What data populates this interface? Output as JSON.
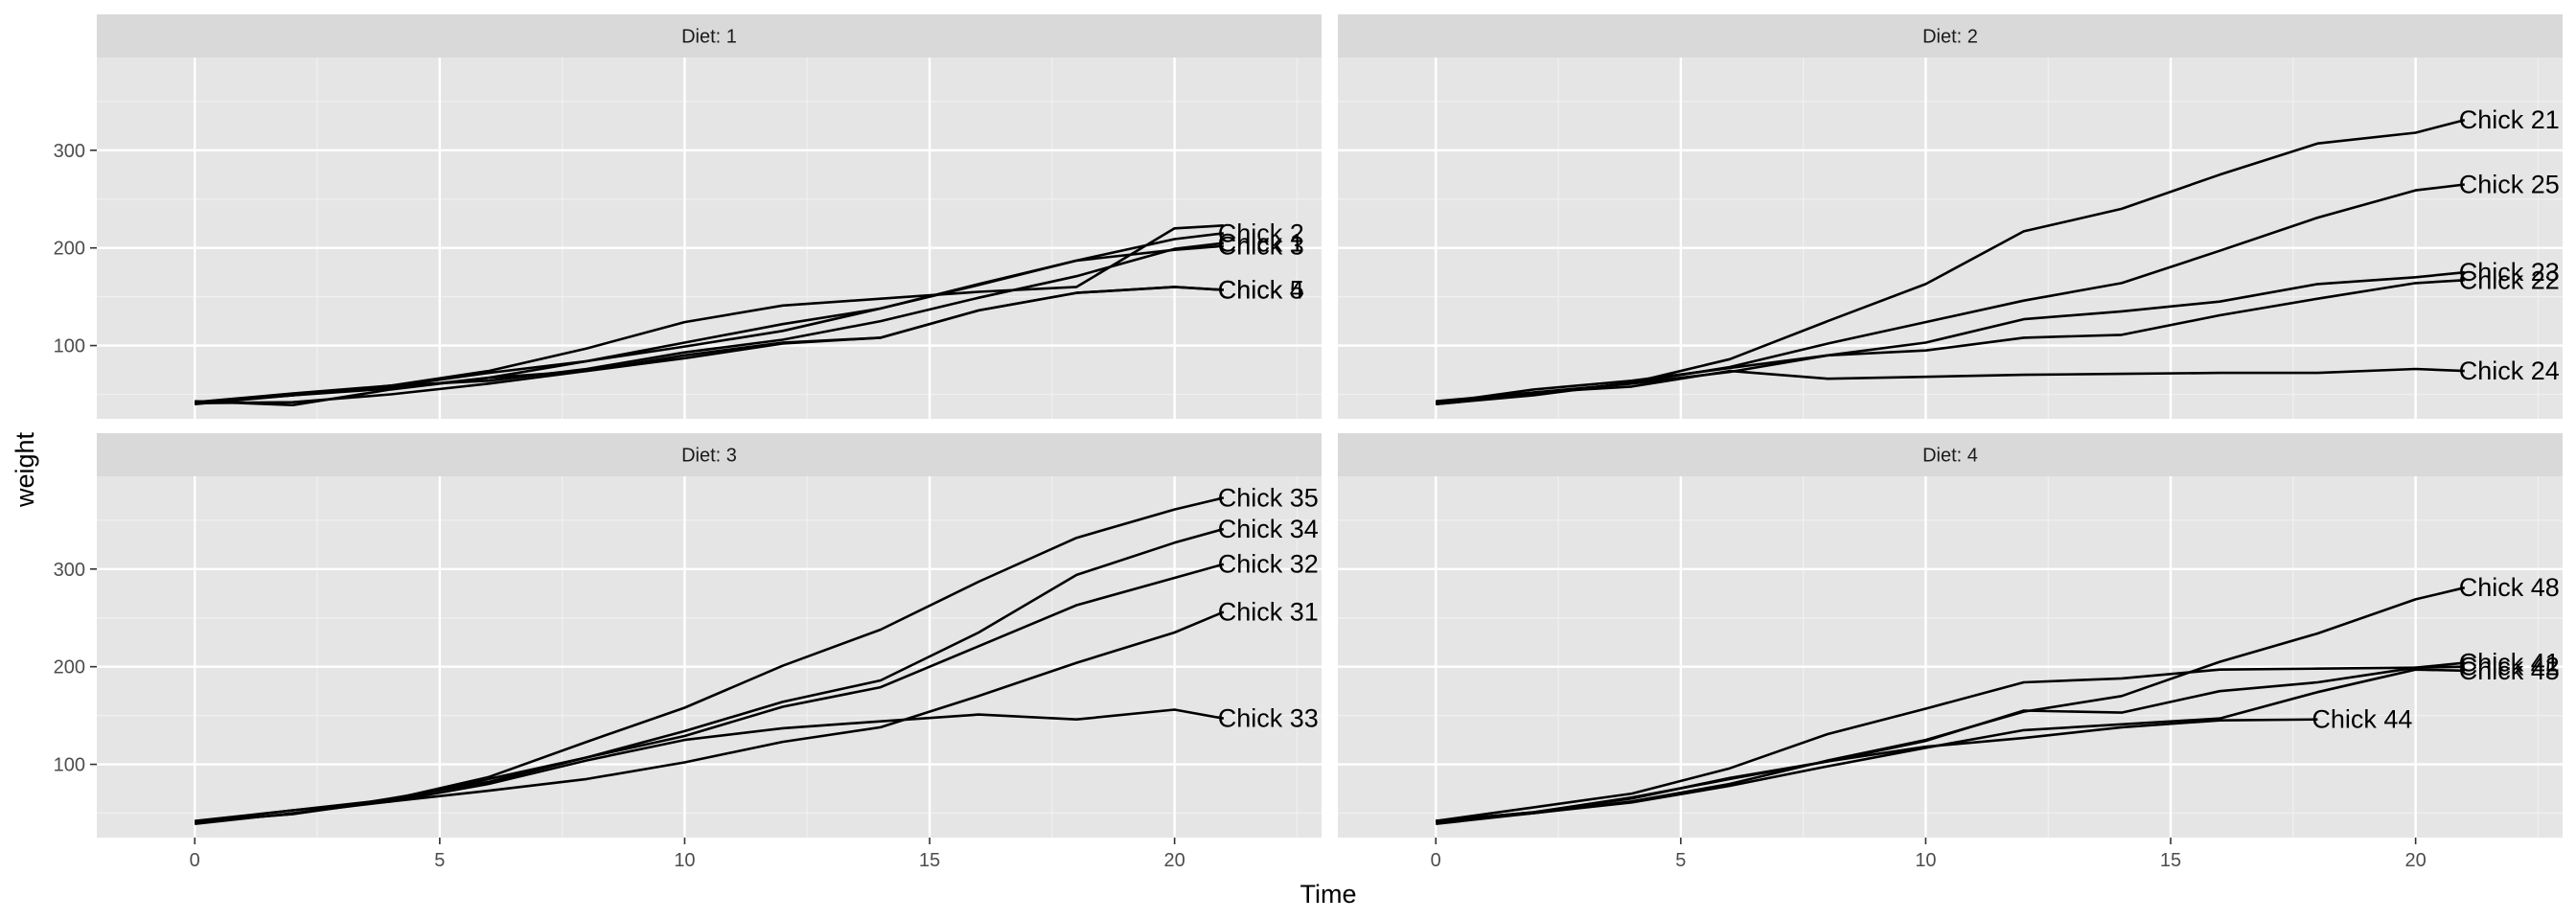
{
  "chart_data": {
    "type": "line",
    "facet_label_prefix": "Diet: ",
    "xlabel": "Time",
    "ylabel": "weight",
    "xlim": [
      -2,
      23
    ],
    "ylim": [
      25,
      395
    ],
    "x_ticks": [
      0,
      5,
      10,
      15,
      20
    ],
    "y_ticks": [
      100,
      200,
      300
    ],
    "grid": true,
    "colors": {
      "panel_bg": "#e5e5e5",
      "strip_bg": "#d9d9d9",
      "grid_major": "#ffffff",
      "grid_minor": "#f0f0f0",
      "line": "#000000"
    },
    "panels": [
      {
        "facet": "1",
        "series": [
          {
            "name": "Chick 5",
            "x": [
              0,
              2,
              4,
              6,
              8,
              10,
              12,
              14,
              16,
              18,
              20,
              21
            ],
            "y": [
              41,
              42,
              50,
              61,
              74,
              90,
              103,
              108,
              136,
              154,
              160,
              157
            ]
          },
          {
            "name": "Chick 2",
            "x": [
              0,
              2,
              4,
              6,
              8,
              10,
              12,
              14,
              16,
              18,
              20,
              21
            ],
            "y": [
              40,
              49,
              58,
              72,
              84,
              103,
              122,
              138,
              162,
              187,
              209,
              215
            ]
          },
          {
            "name": "Chick 1",
            "x": [
              0,
              2,
              4,
              6,
              8,
              10,
              12,
              14,
              16,
              18,
              20,
              21
            ],
            "y": [
              42,
              51,
              59,
              64,
              76,
              93,
              106,
              125,
              149,
              171,
              199,
              205
            ]
          },
          {
            "name": "Chick 3",
            "x": [
              0,
              2,
              4,
              6,
              8,
              10,
              12,
              14,
              16,
              18,
              20,
              21
            ],
            "y": [
              43,
              39,
              55,
              67,
              84,
              99,
              115,
              138,
              163,
              187,
              198,
              202
            ]
          },
          {
            "name": "Chick 4",
            "x": [
              0,
              2,
              4,
              6,
              8,
              10,
              12,
              14,
              16,
              18,
              20,
              21
            ],
            "y": [
              42,
              49,
              56,
              67,
              74,
              87,
              102,
              108,
              136,
              154,
              160,
              157
            ]
          },
          {
            "name": "",
            "x": [
              0,
              2,
              4,
              6,
              8,
              10,
              12,
              14,
              16,
              18,
              20,
              21
            ],
            "y": [
              41,
              49,
              59,
              74,
              97,
              124,
              141,
              148,
              155,
              160,
              220,
              223
            ]
          }
        ]
      },
      {
        "facet": "2",
        "series": [
          {
            "name": "Chick 21",
            "x": [
              0,
              2,
              4,
              6,
              8,
              10,
              12,
              14,
              16,
              18,
              20,
              21
            ],
            "y": [
              40,
              50,
              62,
              86,
              125,
              163,
              217,
              240,
              275,
              307,
              318,
              331
            ]
          },
          {
            "name": "Chick 25",
            "x": [
              0,
              2,
              4,
              6,
              8,
              10,
              12,
              14,
              16,
              18,
              20,
              21
            ],
            "y": [
              40,
              49,
              62,
              78,
              102,
              124,
              146,
              164,
              197,
              231,
              259,
              265
            ]
          },
          {
            "name": "Chick 23",
            "x": [
              0,
              2,
              4,
              6,
              8,
              10,
              12,
              14,
              16,
              18,
              20,
              21
            ],
            "y": [
              43,
              52,
              61,
              73,
              90,
              103,
              127,
              135,
              145,
              163,
              170,
              175
            ]
          },
          {
            "name": "Chick 22",
            "x": [
              0,
              2,
              4,
              6,
              8,
              10,
              12,
              14,
              16,
              18,
              20,
              21
            ],
            "y": [
              41,
              55,
              64,
              77,
              90,
              95,
              108,
              111,
              131,
              148,
              164,
              167
            ]
          },
          {
            "name": "Chick 24",
            "x": [
              0,
              2,
              4,
              6,
              8,
              10,
              12,
              14,
              16,
              18,
              20,
              21
            ],
            "y": [
              42,
              52,
              58,
              74,
              66,
              68,
              70,
              71,
              72,
              72,
              76,
              74
            ]
          }
        ]
      },
      {
        "facet": "3",
        "series": [
          {
            "name": "Chick 35",
            "x": [
              0,
              2,
              4,
              6,
              8,
              10,
              12,
              14,
              16,
              18,
              20,
              21
            ],
            "y": [
              41,
              53,
              64,
              87,
              123,
              158,
              201,
              238,
              287,
              332,
              361,
              373
            ]
          },
          {
            "name": "Chick 34",
            "x": [
              0,
              2,
              4,
              6,
              8,
              10,
              12,
              14,
              16,
              18,
              20,
              21
            ],
            "y": [
              41,
              49,
              63,
              85,
              107,
              134,
              164,
              186,
              235,
              294,
              327,
              341
            ]
          },
          {
            "name": "Chick 32",
            "x": [
              0,
              2,
              4,
              6,
              8,
              10,
              12,
              14,
              16,
              18,
              20,
              21
            ],
            "y": [
              41,
              49,
              65,
              82,
              107,
              129,
              159,
              179,
              221,
              263,
              291,
              305
            ]
          },
          {
            "name": "Chick 31",
            "x": [
              0,
              2,
              4,
              6,
              8,
              10,
              12,
              14,
              16,
              18,
              20,
              21
            ],
            "y": [
              42,
              53,
              62,
              73,
              85,
              102,
              123,
              138,
              170,
              204,
              235,
              256
            ]
          },
          {
            "name": "Chick 33",
            "x": [
              0,
              2,
              4,
              6,
              8,
              10,
              12,
              14,
              16,
              18,
              20,
              21
            ],
            "y": [
              39,
              50,
              62,
              80,
              104,
              125,
              137,
              144,
              151,
              146,
              156,
              147
            ]
          }
        ]
      },
      {
        "facet": "4",
        "series": [
          {
            "name": "Chick 42",
            "x": [
              0,
              2,
              4,
              6,
              8,
              10,
              12,
              14,
              16,
              18,
              20,
              21
            ],
            "y": [
              42,
              56,
              70,
              96,
              131,
              157,
              184,
              188,
              197,
              198,
              199,
              200
            ]
          },
          {
            "name": "Chick 41",
            "x": [
              0,
              2,
              4,
              6,
              8,
              10,
              12,
              14,
              16,
              18,
              20,
              21
            ],
            "y": [
              42,
              51,
              66,
              85,
              103,
              124,
              155,
              153,
              175,
              184,
              199,
              204
            ]
          },
          {
            "name": "Chick 48",
            "x": [
              0,
              2,
              4,
              6,
              8,
              10,
              12,
              14,
              16,
              18,
              20,
              21
            ],
            "y": [
              39,
              50,
              62,
              80,
              104,
              125,
              154,
              170,
              205,
              234,
              269,
              281
            ]
          },
          {
            "name": "Chick 45",
            "x": [
              0,
              2,
              4,
              6,
              8,
              10,
              12,
              14,
              16,
              18,
              20,
              21
            ],
            "y": [
              41,
              50,
              61,
              78,
              98,
              117,
              135,
              141,
              147,
              174,
              197,
              196
            ]
          },
          {
            "name": "Chick 44",
            "x": [
              0,
              2,
              4,
              6,
              8,
              10,
              12,
              14,
              16,
              18
            ],
            "y": [
              42,
              51,
              65,
              86,
              103,
              118,
              127,
              138,
              145,
              146
            ]
          }
        ]
      }
    ]
  }
}
